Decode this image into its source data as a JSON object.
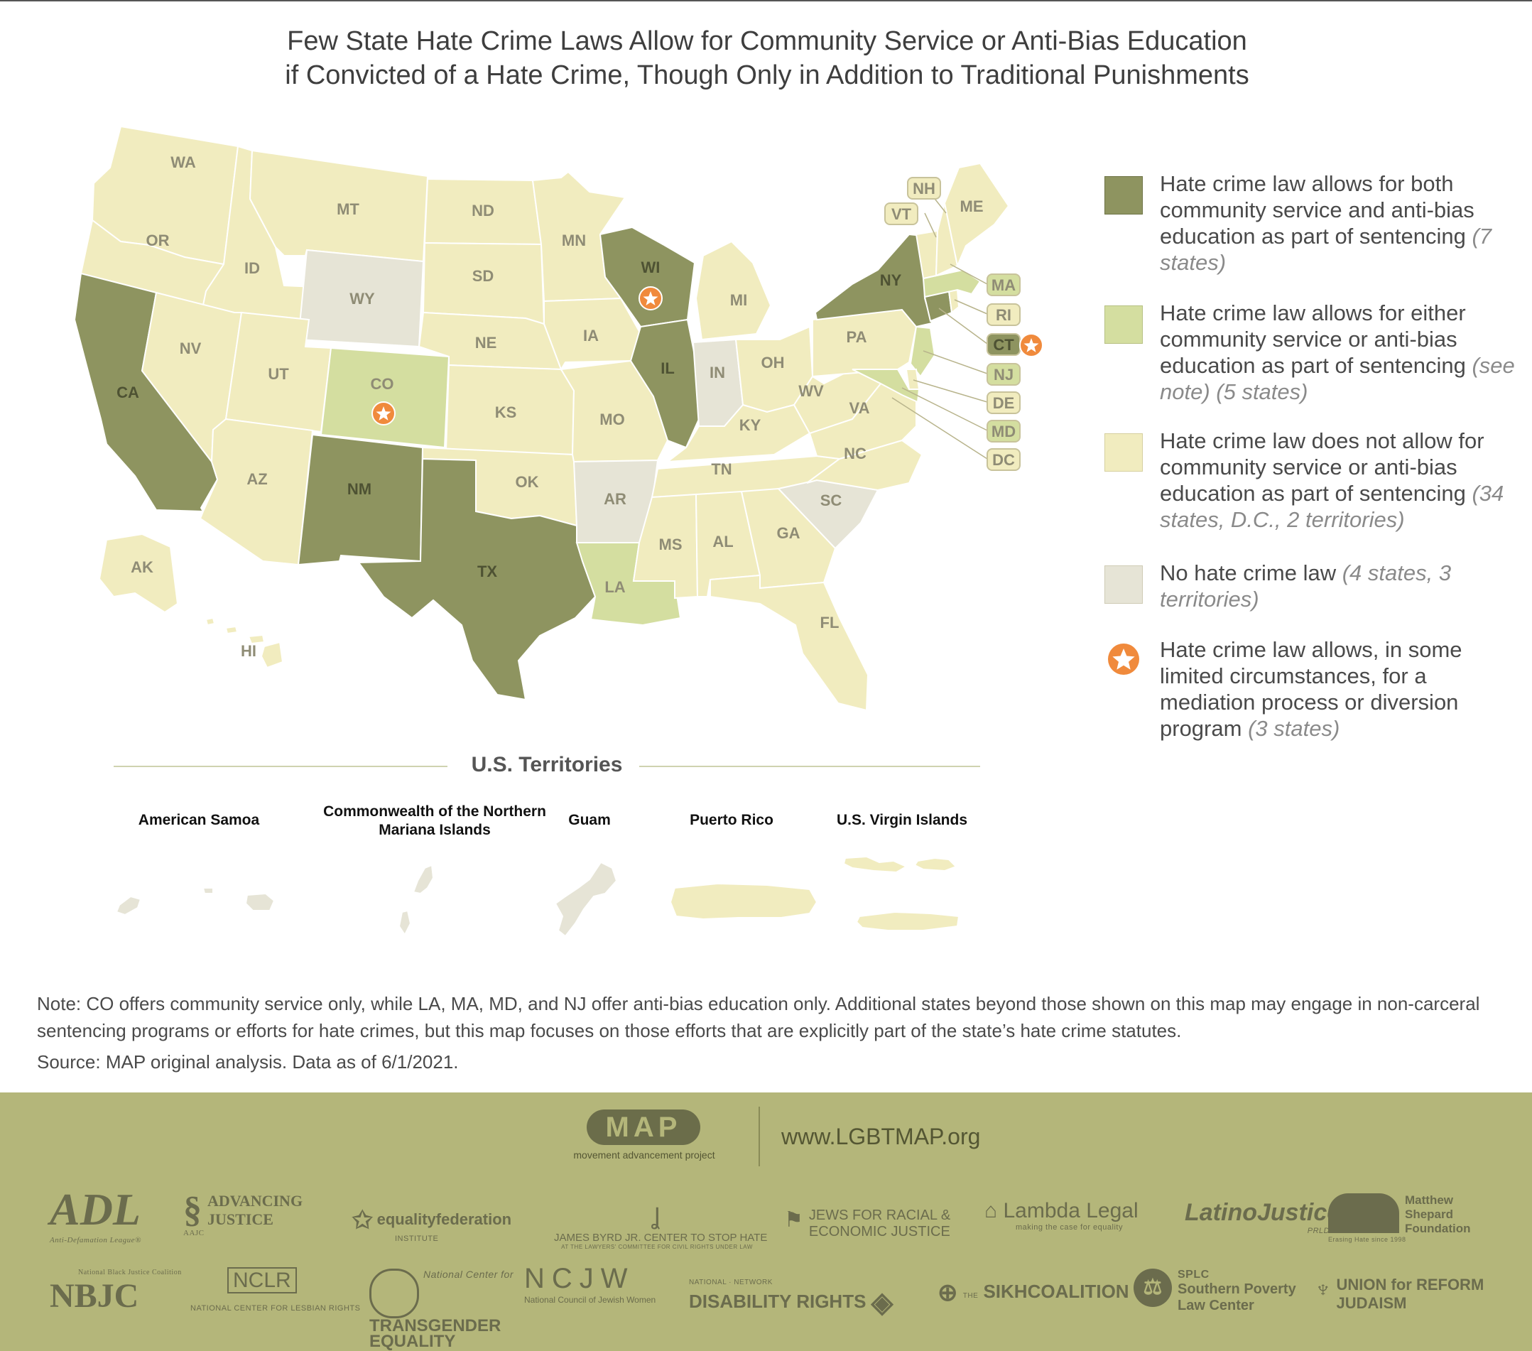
{
  "title": {
    "line1": "Few State Hate Crime Laws Allow for Community Service or Anti-Bias Education",
    "line2": "if Convicted of a Hate Crime, Though Only in Addition to Traditional Punishments"
  },
  "colors": {
    "both": "#8e9460",
    "either": "#d4dea0",
    "none": "#f1ecbf",
    "no_law": "#e6e4d6",
    "star": "#f08a3c",
    "footer": "#b4b67a"
  },
  "states": {
    "both": [
      "CA",
      "NM",
      "TX",
      "WI",
      "IL",
      "NY",
      "CT"
    ],
    "either": [
      "CO",
      "LA",
      "MA",
      "NJ",
      "MD"
    ],
    "no_law": [
      "WY",
      "AR",
      "IN",
      "SC"
    ],
    "star": [
      "WI",
      "CO",
      "CT"
    ],
    "labels": {
      "WA": "WA",
      "OR": "OR",
      "CA": "CA",
      "ID": "ID",
      "NV": "NV",
      "MT": "MT",
      "WY": "WY",
      "UT": "UT",
      "AZ": "AZ",
      "CO": "CO",
      "NM": "NM",
      "ND": "ND",
      "SD": "SD",
      "NE": "NE",
      "KS": "KS",
      "OK": "OK",
      "TX": "TX",
      "MN": "MN",
      "IA": "IA",
      "MO": "MO",
      "AR": "AR",
      "LA": "LA",
      "WI": "WI",
      "IL": "IL",
      "MI": "MI",
      "IN": "IN",
      "OH": "OH",
      "KY": "KY",
      "TN": "TN",
      "MS": "MS",
      "AL": "AL",
      "GA": "GA",
      "FL": "FL",
      "SC": "SC",
      "NC": "NC",
      "VA": "VA",
      "WV": "WV",
      "PA": "PA",
      "NY": "NY",
      "ME": "ME",
      "AK": "AK",
      "HI": "HI"
    },
    "callouts": {
      "NH": "NH",
      "VT": "VT",
      "MA": "MA",
      "RI": "RI",
      "CT": "CT",
      "NJ": "NJ",
      "DE": "DE",
      "MD": "MD",
      "DC": "DC"
    }
  },
  "legend": [
    {
      "key": "both",
      "text": "Hate crime law allows for both community service and anti-bias education as part of sentencing",
      "note": "(7 states)"
    },
    {
      "key": "either",
      "text": "Hate crime law allows for either community service or anti-bias education as part of sentencing",
      "note": "(see note) (5 states)"
    },
    {
      "key": "none",
      "text": "Hate crime law does not allow for community service or anti-bias education as part of sentencing",
      "note": "(34 states, D.C., 2 territories)"
    },
    {
      "key": "no_law",
      "text": "No hate crime law",
      "note": "(4 states, 3 territories)"
    },
    {
      "key": "star",
      "text": "Hate crime law allows, in some limited circumstances, for a mediation process or diversion program",
      "note": "(3 states)"
    }
  ],
  "territories": {
    "heading": "U.S. Territories",
    "items": [
      {
        "name": "American Samoa",
        "status": "no_law"
      },
      {
        "name": "Commonwealth of the Northern Mariana Islands",
        "status": "no_law"
      },
      {
        "name": "Guam",
        "status": "no_law"
      },
      {
        "name": "Puerto Rico",
        "status": "none"
      },
      {
        "name": "U.S. Virgin Islands",
        "status": "none"
      }
    ]
  },
  "note": "Note: CO offers community service only, while LA, MA, MD, and NJ offer anti-bias education only. Additional states beyond those shown on this map may engage in non-carceral sentencing programs or efforts for hate crimes, but this map focuses on those efforts that are explicitly part of the state’s hate crime statutes.",
  "source": "Source: MAP original analysis. Data as of 6/1/2021.",
  "footer": {
    "logo": "MAP",
    "logo_sub": "movement advancement project",
    "url": "www.LGBTMAP.org",
    "partners": [
      {
        "name": "ADL",
        "sub": "Anti-Defamation League®"
      },
      {
        "name": "ADVANCING JUSTICE",
        "sub": "AAJC"
      },
      {
        "name": "equalityfederation",
        "sub": "INSTITUTE"
      },
      {
        "name": "JAMES BYRD JR. CENTER TO STOP HATE",
        "sub": "AT THE LAWYERS' COMMITTEE FOR CIVIL RIGHTS UNDER LAW"
      },
      {
        "name": "JEWS FOR RACIAL & ECONOMIC JUSTICE",
        "sub": ""
      },
      {
        "name": "Lambda Legal",
        "sub": "making the case for equality"
      },
      {
        "name": "LatinoJustice",
        "sub": "PRLDEF"
      },
      {
        "name": "Matthew Shepard Foundation",
        "sub": "Erasing Hate since 1998"
      },
      {
        "name": "NBJC",
        "sub": "National Black Justice Coalition"
      },
      {
        "name": "NCLR",
        "sub": "NATIONAL CENTER FOR LESBIAN RIGHTS"
      },
      {
        "name": "TRANSGENDER EQUALITY",
        "sub": "National Center for"
      },
      {
        "name": "NCJW",
        "sub": "National Council of Jewish Women"
      },
      {
        "name": "DISABILITY RIGHTS",
        "sub": "NATIONAL · NETWORK"
      },
      {
        "name": "SIKHCOALITION",
        "sub": "THE"
      },
      {
        "name": "Southern Poverty Law Center",
        "sub": "SPLC"
      },
      {
        "name": "UNION for REFORM JUDAISM",
        "sub": ""
      }
    ]
  }
}
